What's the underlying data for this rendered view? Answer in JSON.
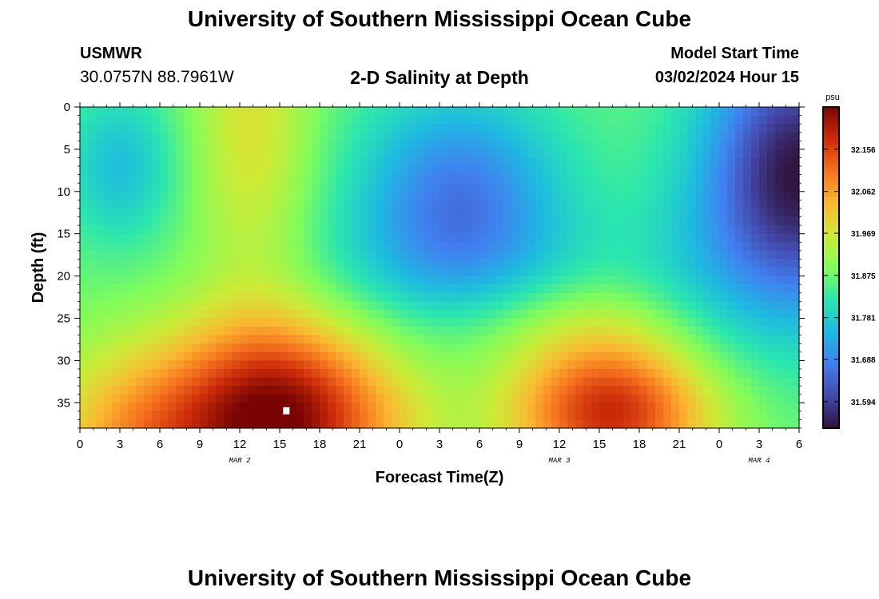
{
  "header": {
    "title": "University of Southern Mississippi Ocean Cube",
    "station": "USMWR",
    "coords": "30.0757N  88.7961W",
    "subtitle": "2-D Salinity at Depth",
    "start_label": "Model Start Time",
    "start_value": "03/02/2024 Hour 15"
  },
  "footer": {
    "title": "University of Southern Mississippi Ocean Cube"
  },
  "chart_data": {
    "type": "heatmap",
    "title": "2-D Salinity at Depth",
    "xlabel": "Forecast Time(Z)",
    "ylabel": "Depth (ft)",
    "x_tick_labels": [
      "0",
      "3",
      "6",
      "9",
      "12",
      "15",
      "18",
      "21",
      "0",
      "3",
      "6",
      "9",
      "12",
      "15",
      "18",
      "21",
      "0",
      "3",
      "6"
    ],
    "x_range_hours": [
      0,
      54
    ],
    "date_labels": [
      {
        "label": "MAR 2",
        "hour": 12
      },
      {
        "label": "MAR 3",
        "hour": 36
      },
      {
        "label": "MAR 4",
        "hour": 51
      }
    ],
    "y_ticks": [
      0,
      5,
      10,
      15,
      20,
      25,
      30,
      35
    ],
    "y_range": [
      0,
      38
    ],
    "y_inverted": true,
    "colorbar": {
      "unit": "psu",
      "tick_values": [
        32.156,
        32.062,
        31.969,
        31.875,
        31.781,
        31.688,
        31.594
      ],
      "range": [
        31.535,
        32.25
      ],
      "colormap": "turbo"
    },
    "grid": false,
    "salinity_field": {
      "description_units": "psu",
      "background": 31.88,
      "features": [
        {
          "center_hour": 15,
          "center_depth_ft": 36,
          "peak": 32.25,
          "kind": "high"
        },
        {
          "center_hour": 16,
          "center_depth_ft": 36,
          "peak": 32.22,
          "kind": "high"
        },
        {
          "center_hour": 13,
          "center_depth_ft": 5,
          "peak": 32.0,
          "kind": "high"
        },
        {
          "center_hour": 3,
          "center_depth_ft": 6,
          "peak": 31.78,
          "kind": "low"
        },
        {
          "center_hour": 27,
          "center_depth_ft": 10,
          "peak": 31.65,
          "kind": "low"
        },
        {
          "center_hour": 52,
          "center_depth_ft": 10,
          "peak": 31.54,
          "kind": "low"
        }
      ]
    },
    "marker": {
      "hour": 15.5,
      "depth_ft": 36
    }
  }
}
